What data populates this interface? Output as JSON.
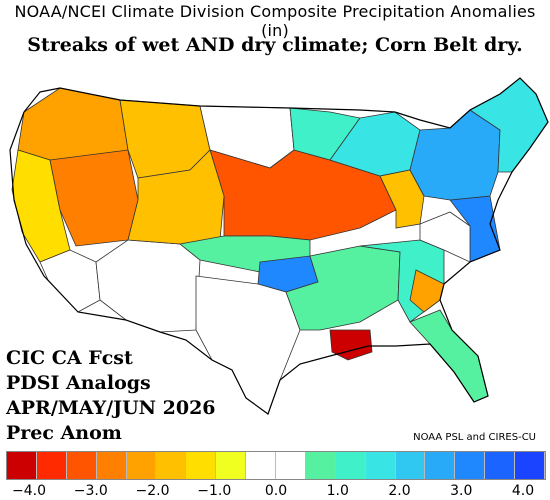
{
  "header": {
    "title": "NOAA/NCEI Climate Division Composite Precipitation Anomalies (in)",
    "subtitle": "Streaks of wet AND dry climate; Corn Belt dry."
  },
  "forecast_block": {
    "line1": "CIC CA Fcst",
    "line2": "PDSI Analogs",
    "line3": "APR/MAY/JUN 2026",
    "line4": "Prec Anom"
  },
  "credit": "NOAA PSL and CIRES-CU",
  "legend": {
    "colors": [
      "#cc0000",
      "#ff2a00",
      "#ff5500",
      "#ff7f00",
      "#ffa200",
      "#ffc000",
      "#ffde00",
      "#f0ff20",
      "#ffffff",
      "#ffffff",
      "#55f0a0",
      "#40f0c8",
      "#38e4e4",
      "#30c8f0",
      "#28aaf8",
      "#2088ff",
      "#1c64ff",
      "#1a44ff"
    ],
    "tick_labels": [
      "−4.0",
      "−3.0",
      "−2.0",
      "−1.0",
      "0.0",
      "1.0",
      "2.0",
      "3.0",
      "4.0"
    ]
  },
  "map": {
    "regions": [
      {
        "name": "pacific-northwest",
        "color": "#ffa200"
      },
      {
        "name": "california-coast",
        "color": "#ffde00"
      },
      {
        "name": "great-basin",
        "color": "#ff7f00"
      },
      {
        "name": "southern-california",
        "color": "#ffffff"
      },
      {
        "name": "northern-rockies",
        "color": "#ffc000"
      },
      {
        "name": "southwest",
        "color": "#ffffff"
      },
      {
        "name": "northern-plains",
        "color": "#ffffff"
      },
      {
        "name": "corn-belt",
        "color": "#ff5500"
      },
      {
        "name": "central-plains",
        "color": "#ffc000"
      },
      {
        "name": "upper-midwest",
        "color": "#40f0c8"
      },
      {
        "name": "great-lakes",
        "color": "#38e4e4"
      },
      {
        "name": "ohio-valley",
        "color": "#ffc000"
      },
      {
        "name": "southern-plains",
        "color": "#55f0a0"
      },
      {
        "name": "oklahoma-wet",
        "color": "#2088ff"
      },
      {
        "name": "texas",
        "color": "#ffffff"
      },
      {
        "name": "gulf-coast",
        "color": "#55f0a0"
      },
      {
        "name": "louisiana",
        "color": "#cc0000"
      },
      {
        "name": "southeast",
        "color": "#40f0c8"
      },
      {
        "name": "georgia-carolinas",
        "color": "#ffa200"
      },
      {
        "name": "florida",
        "color": "#55f0a0"
      },
      {
        "name": "mid-atlantic",
        "color": "#2088ff"
      },
      {
        "name": "appalachia",
        "color": "#ffffff"
      },
      {
        "name": "northeast",
        "color": "#28aaf8"
      },
      {
        "name": "new-england",
        "color": "#38e4e4"
      }
    ]
  }
}
